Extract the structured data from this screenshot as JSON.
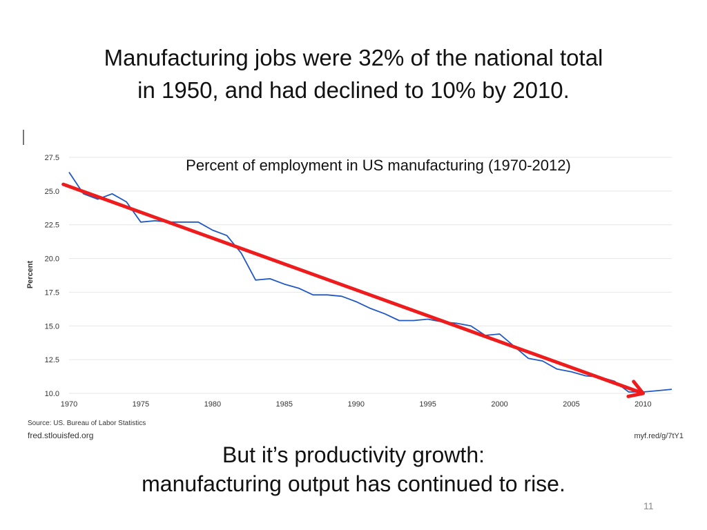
{
  "slide": {
    "title_line1": "Manufacturing jobs were 32% of the national total",
    "title_line2": "in 1950, and had declined to 10% by 2010.",
    "footer_line1": "But it’s productivity growth:",
    "footer_line2": "manufacturing output has continued to rise.",
    "page_number": "11"
  },
  "colors": {
    "series_line": "#1f57c3",
    "trend_arrow": "#ee1c1c",
    "grid": "#e6e6e6",
    "axis_text": "#333333"
  },
  "chart_data": {
    "type": "line",
    "title": "Percent of employment in US manufacturing (1970-2012)",
    "ylabel": "Percent",
    "xlabel": "",
    "xlim": [
      1970,
      2012
    ],
    "ylim": [
      10.0,
      27.5
    ],
    "y_ticks": [
      "10.0",
      "12.5",
      "15.0",
      "17.5",
      "20.0",
      "22.5",
      "25.0",
      "27.5"
    ],
    "x_ticks": [
      "1970",
      "1975",
      "1980",
      "1985",
      "1990",
      "1995",
      "2000",
      "2005",
      "2010"
    ],
    "source": "Source: US. Bureau of Labor Statistics",
    "source_site": "fred.stlouisfed.org",
    "short_link": "myf.red/g/7tY1",
    "series": [
      {
        "name": "Percent of employment in US manufacturing",
        "x": [
          1970,
          1971,
          1972,
          1973,
          1974,
          1975,
          1976,
          1977,
          1978,
          1979,
          1980,
          1981,
          1982,
          1983,
          1984,
          1985,
          1986,
          1987,
          1988,
          1989,
          1990,
          1991,
          1992,
          1993,
          1994,
          1995,
          1996,
          1997,
          1998,
          1999,
          2000,
          2001,
          2002,
          2003,
          2004,
          2005,
          2006,
          2007,
          2008,
          2009,
          2010,
          2011,
          2012
        ],
        "values": [
          26.4,
          24.8,
          24.4,
          24.8,
          24.2,
          22.7,
          22.8,
          22.7,
          22.7,
          22.7,
          22.1,
          21.7,
          20.4,
          18.4,
          18.5,
          18.1,
          17.8,
          17.3,
          17.3,
          17.2,
          16.8,
          16.3,
          15.9,
          15.4,
          15.4,
          15.5,
          15.3,
          15.2,
          15.0,
          14.3,
          14.4,
          13.5,
          12.6,
          12.4,
          11.8,
          11.6,
          11.3,
          11.2,
          10.9,
          10.1,
          10.1,
          10.2,
          10.3
        ]
      }
    ],
    "annotations": [
      {
        "type": "trend-arrow",
        "from": {
          "x": 1969.6,
          "y": 25.5
        },
        "to": {
          "x": 2010.0,
          "y": 10.0
        }
      }
    ]
  }
}
